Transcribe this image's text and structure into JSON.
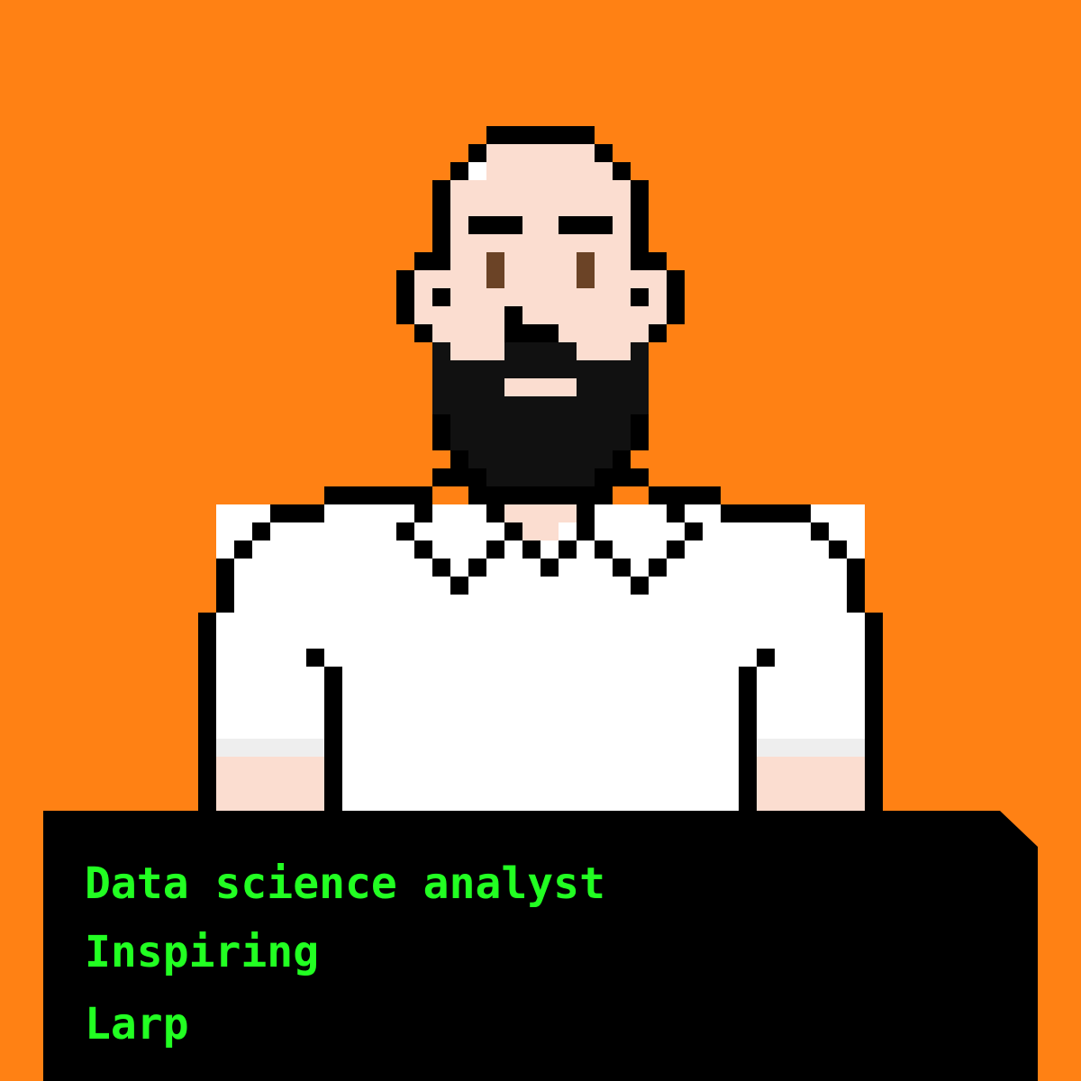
{
  "colors": {
    "background": "#FF8114",
    "outline": "#000000",
    "skin": "#FBDDD0",
    "beard": "#111111",
    "eyes": "#6B4326",
    "shirt": "#FFFFFF",
    "sleeve_cuff": "#EEEEEE",
    "caption_background": "#000000",
    "caption_text": "#22FF22"
  },
  "avatar": {
    "features": [
      "bald-head",
      "eyebrows",
      "brown-eyes",
      "black-beard",
      "white-polo-shirt"
    ]
  },
  "caption": {
    "lines": [
      "Data science analyst",
      "Inspiring",
      "Larp"
    ]
  }
}
